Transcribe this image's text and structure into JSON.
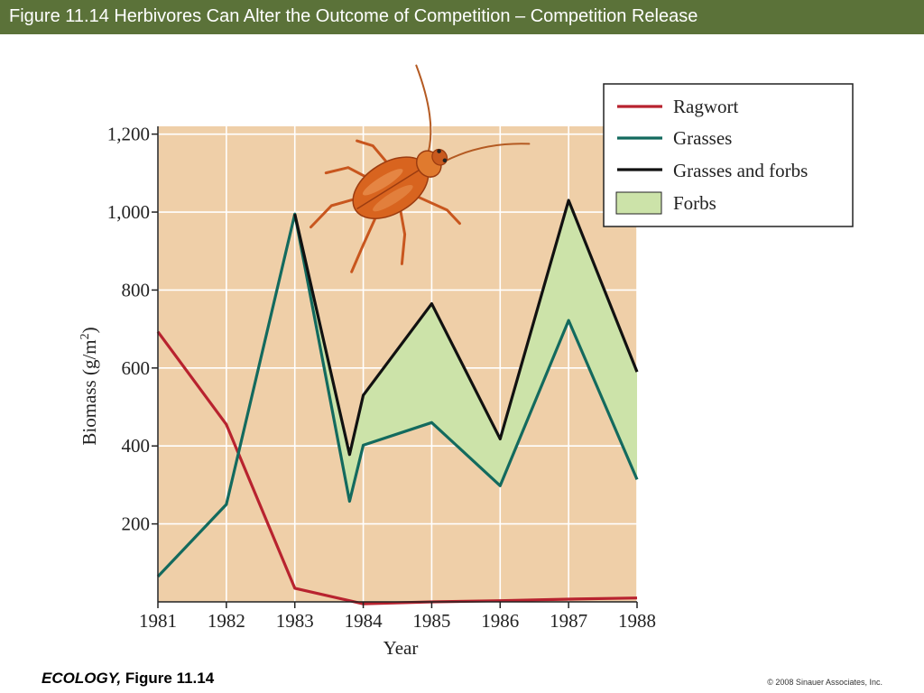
{
  "slide": {
    "title": "Figure 11.14  Herbivores Can Alter the Outcome of Competition –  Competition Release",
    "footer_source_italic": "ECOLOGY,",
    "footer_source_rest": " Figure 11.14",
    "copyright": "© 2008 Sinauer Associates, Inc."
  },
  "colors": {
    "title_bar": "#5b7239",
    "plot_bg": "#efcfa8",
    "grid": "#ffffff",
    "ragwort": "#b8232f",
    "grasses": "#136a5e",
    "grasses_forbs": "#111111",
    "forbs_fill": "#cce3a9"
  },
  "icon": {
    "name": "beetle-icon"
  },
  "chart_data": {
    "type": "line",
    "xlabel": "Year",
    "ylabel": "Biomass (g/m²)",
    "ylim": [
      0,
      1220
    ],
    "xlim": [
      1981,
      1988
    ],
    "y_ticks": [
      200,
      400,
      600,
      800,
      1000,
      1200
    ],
    "y_tick_labels": [
      "200",
      "400",
      "600",
      "800",
      "1,000",
      "1,200"
    ],
    "x_ticks": [
      1981,
      1982,
      1983,
      1984,
      1985,
      1986,
      1987,
      1988
    ],
    "x_tick_labels": [
      "1981",
      "1982",
      "1983",
      "1984",
      "1985",
      "1986",
      "1987",
      "1988"
    ],
    "grid": true,
    "legend_position": "top-right",
    "series": [
      {
        "name": "Ragwort",
        "x": [
          1981,
          1982,
          1983,
          1984,
          1985,
          1986,
          1987,
          1988
        ],
        "y": [
          693,
          455,
          35,
          -5,
          0,
          3,
          7,
          10
        ]
      },
      {
        "name": "Grasses",
        "x": [
          1981,
          1982,
          1983,
          1983.8,
          1984,
          1985,
          1986,
          1987,
          1988
        ],
        "y": [
          65,
          250,
          995,
          258,
          402,
          460,
          298,
          722,
          314
        ]
      },
      {
        "name": "Grasses and forbs",
        "x": [
          1983,
          1983.8,
          1984,
          1985,
          1986,
          1987,
          1988
        ],
        "y": [
          995,
          378,
          530,
          765,
          418,
          1030,
          590
        ]
      },
      {
        "name": "Forbs",
        "kind": "area between Grasses and Grasses and forbs"
      }
    ]
  }
}
